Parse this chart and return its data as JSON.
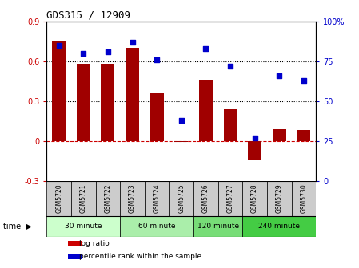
{
  "title": "GDS315 / 12909",
  "samples": [
    "GSM5720",
    "GSM5721",
    "GSM5722",
    "GSM5723",
    "GSM5724",
    "GSM5725",
    "GSM5726",
    "GSM5727",
    "GSM5728",
    "GSM5729",
    "GSM5730"
  ],
  "log_ratio": [
    0.75,
    0.58,
    0.58,
    0.7,
    0.36,
    -0.01,
    0.46,
    0.24,
    -0.14,
    0.09,
    0.08
  ],
  "percentile": [
    85,
    80,
    81,
    87,
    76,
    38,
    83,
    72,
    27,
    66,
    63
  ],
  "bar_color": "#a00000",
  "dot_color": "#0000cc",
  "ylim_left": [
    -0.3,
    0.9
  ],
  "ylim_right": [
    0,
    100
  ],
  "yticks_left": [
    -0.3,
    0.0,
    0.3,
    0.6,
    0.9
  ],
  "ytick_labels_left": [
    "-0.3",
    "0",
    "0.3",
    "0.6",
    "0.9"
  ],
  "yticks_right": [
    0,
    25,
    50,
    75,
    100
  ],
  "ytick_labels_right": [
    "0",
    "25",
    "50",
    "75",
    "100%"
  ],
  "dotted_lines": [
    0.3,
    0.6
  ],
  "zero_line_color": "#cc0000",
  "groups": [
    {
      "label": "30 minute",
      "start": 0,
      "end": 2,
      "color": "#ccffcc"
    },
    {
      "label": "60 minute",
      "start": 3,
      "end": 5,
      "color": "#aaeeaa"
    },
    {
      "label": "120 minute",
      "start": 6,
      "end": 7,
      "color": "#77dd77"
    },
    {
      "label": "240 minute",
      "start": 8,
      "end": 10,
      "color": "#44cc44"
    }
  ],
  "time_label": "time",
  "legend_entries": [
    {
      "label": "log ratio",
      "color": "#cc0000"
    },
    {
      "label": "percentile rank within the sample",
      "color": "#0000cc"
    }
  ],
  "background_color": "#ffffff",
  "plot_bg_color": "#ffffff",
  "tick_area_color": "#cccccc"
}
